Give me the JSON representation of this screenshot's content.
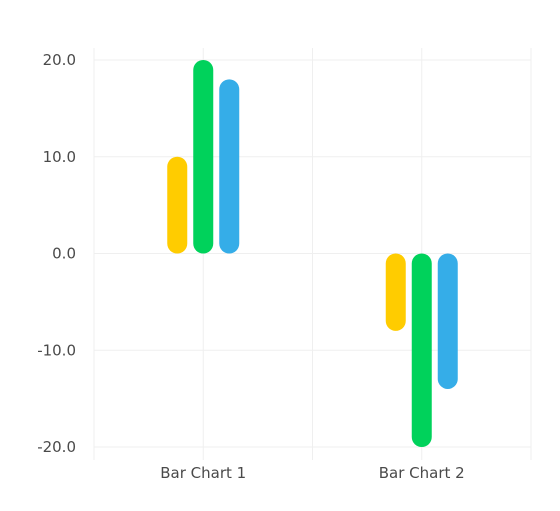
{
  "chart_data": {
    "type": "bar",
    "categories": [
      "Bar Chart 1",
      "Bar Chart 2"
    ],
    "series": [
      {
        "values": [
          10,
          -8
        ],
        "color": "#ffcc00"
      },
      {
        "values": [
          20,
          -20
        ],
        "color": "#00d25b"
      },
      {
        "values": [
          18,
          -14
        ],
        "color": "#35ade8"
      }
    ],
    "ylim": [
      -20,
      20
    ],
    "y_ticks": [
      "20.0",
      "10.0",
      "0.0",
      "-10.0",
      "-20.0"
    ],
    "grid": true,
    "bar_style": "rounded",
    "colors": {
      "grid": "#efefef",
      "text": "#4a4a4a",
      "background": "#ffffff"
    }
  }
}
